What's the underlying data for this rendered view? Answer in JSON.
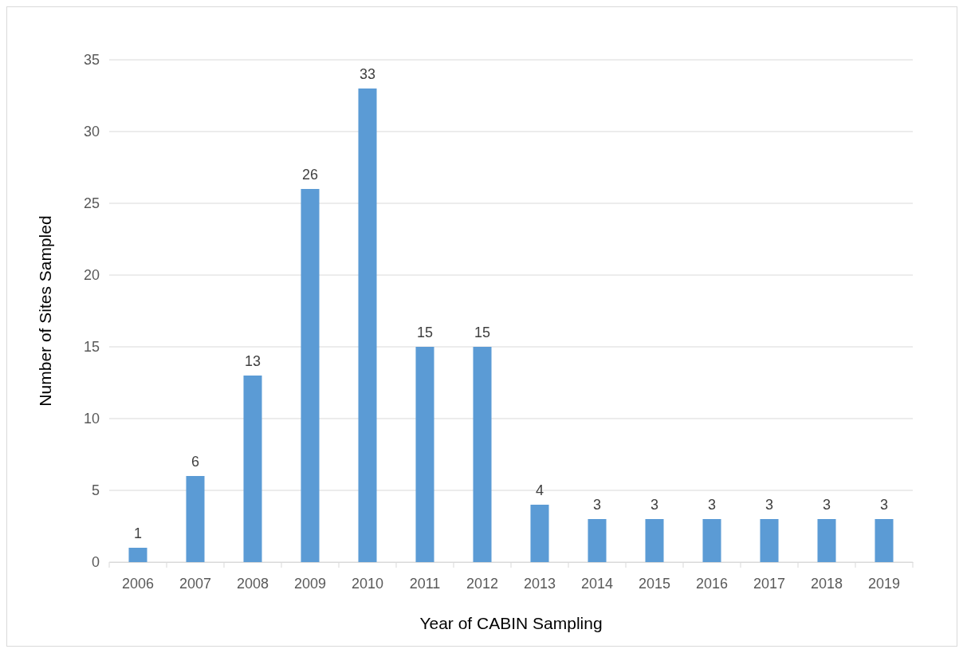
{
  "chart_data": {
    "type": "bar",
    "xlabel": "Year of CABIN Sampling",
    "ylabel": "Number of Sites Sampled",
    "categories": [
      "2006",
      "2007",
      "2008",
      "2009",
      "2010",
      "2011",
      "2012",
      "2013",
      "2014",
      "2015",
      "2016",
      "2017",
      "2018",
      "2019"
    ],
    "values": [
      1,
      6,
      13,
      26,
      33,
      15,
      15,
      4,
      3,
      3,
      3,
      3,
      3,
      3
    ],
    "color": "#5b9bd5",
    "ylim": [
      0,
      35
    ],
    "yticks": [
      0,
      5,
      10,
      15,
      20,
      25,
      30,
      35
    ],
    "grid": "y",
    "data_labels": true
  }
}
